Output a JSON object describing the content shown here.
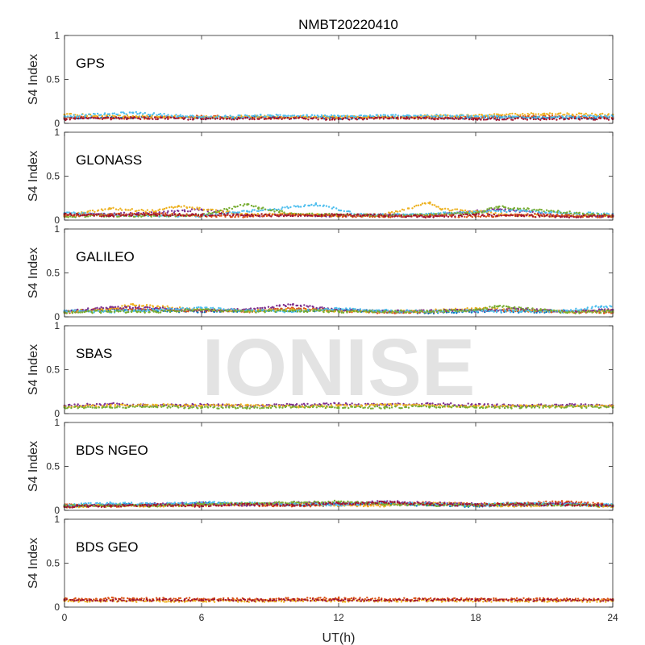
{
  "chart_data": {
    "type": "scatter",
    "title": "NMBT20220410",
    "xlabel": "UT(h)",
    "xlim": [
      0,
      24
    ],
    "xticks": [
      "0",
      "6",
      "12",
      "18",
      "24"
    ],
    "ylabel": "S4 Index",
    "ylim": [
      0,
      1
    ],
    "yticks": [
      "0",
      "0.5",
      "1"
    ],
    "watermark": "IONISE",
    "colors": [
      "#0072BD",
      "#D95319",
      "#EDB120",
      "#7E2F8E",
      "#77AC30",
      "#4DBEEE",
      "#A2142F"
    ],
    "panels": [
      {
        "label": "GPS",
        "series": [
          {
            "color": "#0072BD",
            "x": [
              0,
              3,
              6,
              9,
              12,
              15,
              18,
              21,
              24
            ],
            "y": [
              0.06,
              0.07,
              0.06,
              0.07,
              0.06,
              0.07,
              0.06,
              0.07,
              0.06
            ]
          },
          {
            "color": "#D95319",
            "x": [
              0,
              3,
              6,
              9,
              12,
              15,
              18,
              21,
              24
            ],
            "y": [
              0.07,
              0.06,
              0.08,
              0.06,
              0.07,
              0.06,
              0.07,
              0.08,
              0.07
            ]
          },
          {
            "color": "#EDB120",
            "x": [
              0,
              3,
              6,
              9,
              12,
              15,
              18,
              21,
              24
            ],
            "y": [
              0.1,
              0.08,
              0.07,
              0.08,
              0.07,
              0.08,
              0.09,
              0.11,
              0.1
            ]
          },
          {
            "color": "#4DBEEE",
            "x": [
              0,
              3,
              6,
              9,
              12,
              15,
              18,
              21,
              24
            ],
            "y": [
              0.08,
              0.12,
              0.07,
              0.09,
              0.08,
              0.09,
              0.08,
              0.07,
              0.08
            ]
          },
          {
            "color": "#A2142F",
            "x": [
              0,
              3,
              6,
              9,
              12,
              15,
              18,
              21,
              24
            ],
            "y": [
              0.05,
              0.06,
              0.05,
              0.06,
              0.05,
              0.06,
              0.05,
              0.05,
              0.05
            ]
          }
        ]
      },
      {
        "label": "GLONASS",
        "series": [
          {
            "color": "#7E2F8E",
            "x": [
              0,
              2,
              4,
              6,
              8,
              10,
              12,
              14,
              16,
              18,
              19,
              22,
              24
            ],
            "y": [
              0.06,
              0.07,
              0.08,
              0.12,
              0.05,
              0.06,
              0.05,
              0.06,
              0.05,
              0.1,
              0.12,
              0.05,
              0.04
            ]
          },
          {
            "color": "#EDB120",
            "x": [
              0,
              2,
              4,
              5,
              8,
              10,
              12,
              14,
              16,
              16.5,
              18,
              20,
              24
            ],
            "y": [
              0.05,
              0.13,
              0.1,
              0.16,
              0.06,
              0.07,
              0.05,
              0.06,
              0.2,
              0.12,
              0.1,
              0.05,
              0.05
            ]
          },
          {
            "color": "#4DBEEE",
            "x": [
              0,
              2,
              4,
              6,
              8,
              9,
              11,
              13,
              15,
              18,
              20,
              22,
              24
            ],
            "y": [
              0.08,
              0.06,
              0.05,
              0.05,
              0.1,
              0.12,
              0.18,
              0.06,
              0.06,
              0.09,
              0.11,
              0.08,
              0.07
            ]
          },
          {
            "color": "#77AC30",
            "x": [
              0,
              2,
              4,
              6,
              8,
              8.5,
              10,
              12,
              14,
              16,
              18,
              19,
              24
            ],
            "y": [
              0.04,
              0.05,
              0.05,
              0.06,
              0.18,
              0.14,
              0.07,
              0.06,
              0.05,
              0.06,
              0.08,
              0.15,
              0.05
            ]
          },
          {
            "color": "#D95319",
            "x": [
              0,
              2,
              4,
              6,
              8,
              10,
              12,
              14,
              16,
              18,
              20,
              22,
              24
            ],
            "y": [
              0.05,
              0.06,
              0.07,
              0.05,
              0.04,
              0.06,
              0.05,
              0.04,
              0.05,
              0.04,
              0.06,
              0.05,
              0.04
            ]
          },
          {
            "color": "#A2142F",
            "x": [
              0,
              2,
              4,
              6,
              8,
              10,
              12,
              14,
              16,
              18,
              20,
              22,
              24
            ],
            "y": [
              0.07,
              0.05,
              0.06,
              0.06,
              0.06,
              0.05,
              0.06,
              0.05,
              0.04,
              0.06,
              0.05,
              0.04,
              0.05
            ]
          }
        ]
      },
      {
        "label": "GALILEO",
        "series": [
          {
            "color": "#0072BD",
            "x": [
              0,
              2,
              4,
              6,
              8,
              10,
              12,
              14,
              16,
              18,
              20,
              22,
              24
            ],
            "y": [
              0.06,
              0.08,
              0.07,
              0.06,
              0.07,
              0.07,
              0.08,
              0.06,
              0.05,
              0.06,
              0.06,
              0.06,
              0.07
            ]
          },
          {
            "color": "#D95319",
            "x": [
              0,
              2,
              4,
              6,
              8,
              10,
              12,
              14,
              16,
              18,
              20,
              22,
              24
            ],
            "y": [
              0.05,
              0.1,
              0.08,
              0.07,
              0.06,
              0.1,
              0.07,
              0.05,
              0.06,
              0.08,
              0.07,
              0.06,
              0.05
            ]
          },
          {
            "color": "#EDB120",
            "x": [
              0,
              2,
              3,
              6,
              8,
              10,
              12,
              14,
              16,
              18,
              20,
              22,
              24
            ],
            "y": [
              0.06,
              0.09,
              0.14,
              0.08,
              0.07,
              0.08,
              0.07,
              0.06,
              0.07,
              0.1,
              0.08,
              0.06,
              0.07
            ]
          },
          {
            "color": "#7E2F8E",
            "x": [
              0,
              2,
              4,
              6,
              8,
              10,
              12,
              14,
              16,
              18,
              20,
              22,
              24
            ],
            "y": [
              0.06,
              0.11,
              0.1,
              0.07,
              0.08,
              0.14,
              0.08,
              0.06,
              0.07,
              0.07,
              0.09,
              0.06,
              0.08
            ]
          },
          {
            "color": "#4DBEEE",
            "x": [
              0,
              2,
              4,
              6,
              8,
              10,
              12,
              14,
              16,
              18,
              20,
              22,
              23.5
            ],
            "y": [
              0.07,
              0.06,
              0.08,
              0.1,
              0.07,
              0.06,
              0.09,
              0.07,
              0.06,
              0.07,
              0.06,
              0.07,
              0.12
            ]
          },
          {
            "color": "#77AC30",
            "x": [
              0,
              2,
              4,
              6,
              8,
              10,
              12,
              14,
              16,
              18,
              19,
              22,
              24
            ],
            "y": [
              0.05,
              0.06,
              0.06,
              0.08,
              0.06,
              0.07,
              0.06,
              0.06,
              0.06,
              0.08,
              0.12,
              0.05,
              0.06
            ]
          }
        ]
      },
      {
        "label": "SBAS",
        "series": [
          {
            "color": "#7E2F8E",
            "x": [
              0,
              2,
              4,
              6,
              8,
              10,
              12,
              14,
              16,
              18,
              20,
              22,
              24
            ],
            "y": [
              0.09,
              0.11,
              0.09,
              0.1,
              0.09,
              0.1,
              0.11,
              0.1,
              0.11,
              0.1,
              0.09,
              0.1,
              0.09
            ]
          },
          {
            "color": "#EDB120",
            "x": [
              0,
              2,
              4,
              6,
              8,
              10,
              12,
              14,
              16,
              18,
              20,
              22,
              24
            ],
            "y": [
              0.08,
              0.09,
              0.1,
              0.09,
              0.1,
              0.08,
              0.09,
              0.1,
              0.09,
              0.08,
              0.09,
              0.08,
              0.09
            ]
          },
          {
            "color": "#77AC30",
            "x": [
              0,
              2,
              4,
              6,
              8,
              10,
              12,
              14,
              16,
              18,
              20,
              22,
              24
            ],
            "y": [
              0.07,
              0.07,
              0.08,
              0.07,
              0.07,
              0.08,
              0.07,
              0.07,
              0.08,
              0.07,
              0.07,
              0.08,
              0.07
            ]
          }
        ]
      },
      {
        "label": "BDS NGEO",
        "series": [
          {
            "color": "#0072BD",
            "x": [
              0,
              2,
              4,
              6,
              8,
              10,
              12,
              14,
              16,
              18,
              20,
              22,
              24
            ],
            "y": [
              0.05,
              0.07,
              0.06,
              0.08,
              0.07,
              0.06,
              0.08,
              0.07,
              0.06,
              0.05,
              0.06,
              0.07,
              0.05
            ]
          },
          {
            "color": "#D95319",
            "x": [
              0,
              2,
              4,
              6,
              8,
              10,
              12,
              14,
              16,
              18,
              20,
              22,
              24
            ],
            "y": [
              0.06,
              0.05,
              0.06,
              0.07,
              0.06,
              0.05,
              0.06,
              0.07,
              0.08,
              0.07,
              0.08,
              0.1,
              0.06
            ]
          },
          {
            "color": "#EDB120",
            "x": [
              0,
              2,
              4,
              6,
              8,
              10,
              12,
              14,
              16,
              18,
              20,
              22,
              24
            ],
            "y": [
              0.04,
              0.06,
              0.05,
              0.06,
              0.07,
              0.08,
              0.06,
              0.05,
              0.09,
              0.06,
              0.05,
              0.07,
              0.04
            ]
          },
          {
            "color": "#7E2F8E",
            "x": [
              0,
              2,
              4,
              6,
              8,
              10,
              12,
              14,
              16,
              18,
              20,
              22,
              24
            ],
            "y": [
              0.05,
              0.06,
              0.07,
              0.08,
              0.06,
              0.09,
              0.07,
              0.1,
              0.08,
              0.07,
              0.06,
              0.08,
              0.05
            ]
          },
          {
            "color": "#4DBEEE",
            "x": [
              0,
              2,
              4,
              6,
              8,
              10,
              12,
              14,
              16,
              18,
              20,
              22,
              24
            ],
            "y": [
              0.06,
              0.08,
              0.07,
              0.09,
              0.08,
              0.07,
              0.06,
              0.09,
              0.07,
              0.06,
              0.08,
              0.07,
              0.06
            ]
          },
          {
            "color": "#77AC30",
            "x": [
              0,
              2,
              4,
              6,
              8,
              10,
              12,
              14,
              16,
              18,
              20,
              22,
              24
            ],
            "y": [
              0.05,
              0.06,
              0.05,
              0.07,
              0.08,
              0.09,
              0.1,
              0.07,
              0.06,
              0.06,
              0.07,
              0.06,
              0.05
            ]
          },
          {
            "color": "#A2142F",
            "x": [
              0,
              2,
              4,
              6,
              8,
              10,
              12,
              14,
              16,
              18,
              20,
              22,
              24
            ],
            "y": [
              0.04,
              0.05,
              0.06,
              0.05,
              0.07,
              0.06,
              0.08,
              0.09,
              0.07,
              0.06,
              0.07,
              0.06,
              0.05
            ]
          }
        ]
      },
      {
        "label": "BDS GEO",
        "series": [
          {
            "color": "#D95319",
            "x": [
              0,
              3,
              6,
              9,
              12,
              15,
              18,
              21,
              24
            ],
            "y": [
              0.09,
              0.1,
              0.09,
              0.09,
              0.1,
              0.09,
              0.09,
              0.09,
              0.09
            ]
          },
          {
            "color": "#EDB120",
            "x": [
              0,
              3,
              6,
              9,
              12,
              15,
              18,
              21,
              24
            ],
            "y": [
              0.07,
              0.07,
              0.07,
              0.07,
              0.07,
              0.07,
              0.07,
              0.07,
              0.07
            ]
          },
          {
            "color": "#A2142F",
            "x": [
              0,
              3,
              6,
              9,
              12,
              15,
              18,
              21,
              24
            ],
            "y": [
              0.08,
              0.08,
              0.08,
              0.08,
              0.08,
              0.08,
              0.08,
              0.08,
              0.08
            ]
          }
        ]
      }
    ]
  }
}
